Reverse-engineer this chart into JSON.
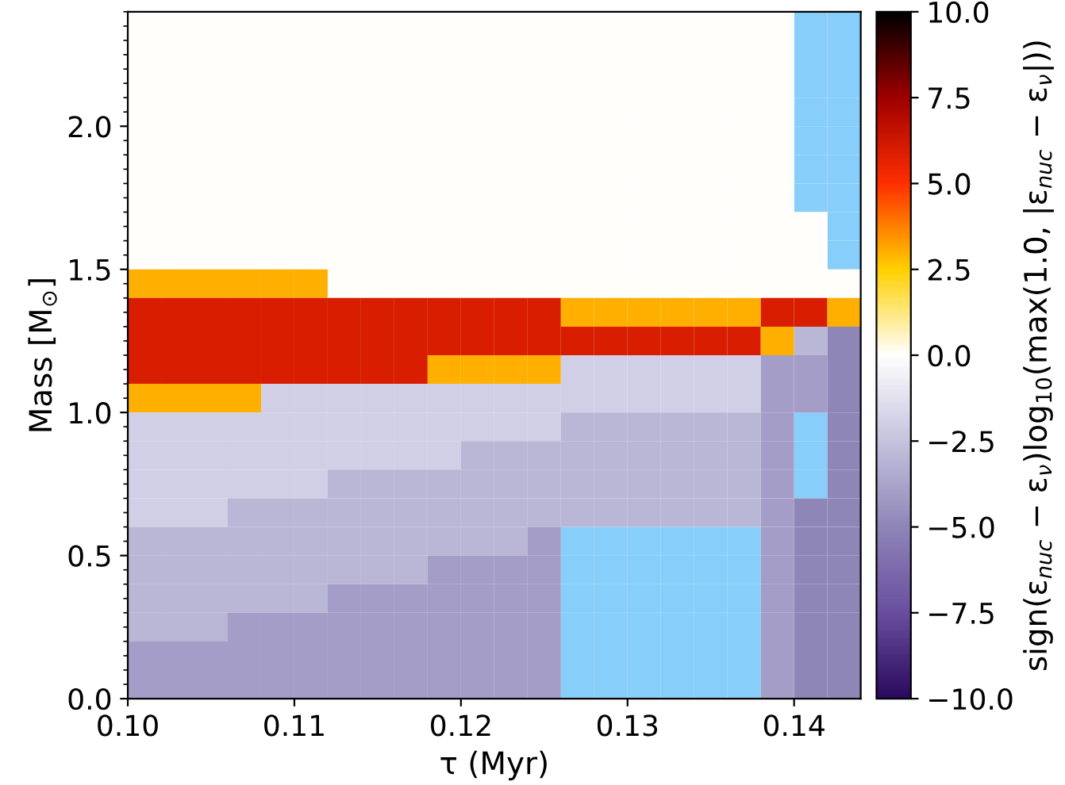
{
  "chart_data": {
    "type": "heatmap",
    "xlabel": "τ (Myr)",
    "ylabel": "Mass [M$_{⊙}$]",
    "clabel": "sign(ε$_{nuc}$ − ε$_{ν}$)log$_{10}$(max(1.0, |ε$_{nuc}$ − ε$_{ν}$|))",
    "x": [
      0.101,
      0.103,
      0.105,
      0.107,
      0.109,
      0.111,
      0.113,
      0.115,
      0.117,
      0.119,
      0.121,
      0.123,
      0.125,
      0.127,
      0.129,
      0.131,
      0.133,
      0.135,
      0.137,
      0.139,
      0.141,
      0.143
    ],
    "y": [
      2.35,
      2.25,
      2.15,
      2.05,
      1.95,
      1.85,
      1.75,
      1.65,
      1.55,
      1.45,
      1.35,
      1.25,
      1.15,
      1.05,
      0.95,
      0.85,
      0.75,
      0.65,
      0.55,
      0.45,
      0.35,
      0.25,
      0.15,
      0.05
    ],
    "xlim": [
      0.1,
      0.144
    ],
    "ylim": [
      0,
      2.4
    ],
    "xticks": [
      {
        "value": 0.1,
        "label": "0.10"
      },
      {
        "value": 0.11,
        "label": "0.11"
      },
      {
        "value": 0.12,
        "label": "0.12"
      },
      {
        "value": 0.13,
        "label": "0.13"
      },
      {
        "value": 0.14,
        "label": "0.14"
      }
    ],
    "yticks": [
      {
        "value": 0,
        "label": "0.0"
      },
      0.5,
      {
        "value": 1,
        "label": "1.0"
      },
      1.5,
      {
        "value": 2,
        "label": "2.0"
      }
    ],
    "clim": [
      -10,
      10
    ],
    "cticks": [
      {
        "value": -10,
        "label": "−10.0"
      },
      {
        "value": -7.5,
        "label": "−7.5"
      },
      {
        "value": -5,
        "label": "−5.0"
      },
      {
        "value": -2.5,
        "label": "−2.5"
      },
      {
        "value": 0,
        "label": "0.0"
      },
      2.5,
      {
        "value": 5,
        "label": "5.0"
      },
      7.5,
      {
        "value": 10,
        "label": "10.0"
      }
    ],
    "cells": [
      [
        0,
        0,
        0,
        0,
        0,
        0,
        0,
        0,
        0,
        0,
        0,
        0,
        0,
        0,
        0,
        0,
        0,
        0,
        0,
        0,
        null,
        null
      ],
      [
        0,
        0,
        0,
        0,
        0,
        0,
        0,
        0,
        0,
        0,
        0,
        0,
        0,
        0,
        0,
        0,
        0,
        0,
        0,
        0,
        null,
        null
      ],
      [
        0,
        0,
        0,
        0,
        0,
        0,
        0,
        0,
        0,
        0,
        0,
        0,
        0,
        0,
        0,
        0,
        0,
        0,
        0,
        0,
        null,
        null
      ],
      [
        0,
        0,
        0,
        0,
        0,
        0,
        0,
        0,
        0,
        0,
        0,
        0,
        0,
        0,
        0,
        0,
        0,
        0,
        0,
        0,
        null,
        null
      ],
      [
        0,
        0,
        0,
        0,
        0,
        0,
        0,
        0,
        0,
        0,
        0,
        0,
        0,
        0,
        0,
        0,
        0,
        0,
        0,
        0,
        null,
        null
      ],
      [
        0,
        0,
        0,
        0,
        0,
        0,
        0,
        0,
        0,
        0,
        0,
        0,
        0,
        0,
        0,
        0,
        0,
        0,
        0,
        0,
        null,
        null
      ],
      [
        0,
        0,
        0,
        0,
        0,
        0,
        0,
        0,
        0,
        0,
        0,
        0,
        0,
        0,
        0,
        0,
        0,
        0,
        0,
        0,
        null,
        null
      ],
      [
        0,
        0,
        0,
        0,
        0,
        0,
        0,
        0,
        0,
        0,
        0,
        0,
        0,
        0,
        0,
        0,
        0,
        0,
        0,
        0,
        0,
        null
      ],
      [
        0,
        0,
        0,
        0,
        0,
        0,
        0,
        0,
        0,
        0,
        0,
        0,
        0,
        0,
        0,
        0,
        0,
        0,
        0,
        0,
        0,
        null
      ],
      [
        3,
        3,
        3,
        3,
        3,
        3,
        0,
        0,
        0,
        0,
        0,
        0,
        0,
        0,
        0,
        0,
        0,
        0,
        0,
        0,
        0,
        0
      ],
      [
        6,
        6,
        6,
        6,
        6,
        6,
        6,
        6,
        6,
        6,
        6,
        6,
        6,
        3,
        3,
        3,
        3,
        3,
        3,
        6,
        6,
        3
      ],
      [
        6,
        6,
        6,
        6,
        6,
        6,
        6,
        6,
        6,
        6,
        6,
        6,
        6,
        6,
        6,
        6,
        6,
        6,
        6,
        3,
        -3,
        -5
      ],
      [
        6,
        6,
        6,
        6,
        6,
        6,
        6,
        6,
        6,
        3,
        3,
        3,
        3,
        -2,
        -2,
        -2,
        -2,
        -2,
        -2,
        -4,
        -4,
        -5
      ],
      [
        3,
        3,
        3,
        3,
        -2,
        -2,
        -2,
        -2,
        -2,
        -2,
        -2,
        -2,
        -2,
        -2,
        -2,
        -2,
        -2,
        -2,
        -2,
        -4,
        -4,
        -5
      ],
      [
        -2,
        -2,
        -2,
        -2,
        -2,
        -2,
        -2,
        -2,
        -2,
        -2,
        -2,
        -2,
        -2,
        -3,
        -3,
        -3,
        -3,
        -3,
        -3,
        -4,
        null,
        -5
      ],
      [
        -2,
        -2,
        -2,
        -2,
        -2,
        -2,
        -2,
        -2,
        -2,
        -2,
        -3,
        -3,
        -3,
        -3,
        -3,
        -3,
        -3,
        -3,
        -3,
        -4,
        null,
        -5
      ],
      [
        -2,
        -2,
        -2,
        -2,
        -2,
        -2,
        -3,
        -3,
        -3,
        -3,
        -3,
        -3,
        -3,
        -3,
        -3,
        -3,
        -3,
        -3,
        -3,
        -4,
        null,
        -5
      ],
      [
        -2,
        -2,
        -2,
        -3,
        -3,
        -3,
        -3,
        -3,
        -3,
        -3,
        -3,
        -3,
        -3,
        -3,
        -3,
        -3,
        -3,
        -3,
        -3,
        -4,
        -5,
        -5
      ],
      [
        -3,
        -3,
        -3,
        -3,
        -3,
        -3,
        -3,
        -3,
        -3,
        -3,
        -3,
        -3,
        -4,
        null,
        null,
        null,
        null,
        null,
        null,
        -4,
        -5,
        -5
      ],
      [
        -3,
        -3,
        -3,
        -3,
        -3,
        -3,
        -3,
        -3,
        -3,
        -4,
        -4,
        -4,
        -4,
        null,
        null,
        null,
        null,
        null,
        null,
        -4,
        -5,
        -5
      ],
      [
        -3,
        -3,
        -3,
        -3,
        -3,
        -3,
        -4,
        -4,
        -4,
        -4,
        -4,
        -4,
        -4,
        null,
        null,
        null,
        null,
        null,
        null,
        -4,
        -5,
        -5
      ],
      [
        -3,
        -3,
        -3,
        -4,
        -4,
        -4,
        -4,
        -4,
        -4,
        -4,
        -4,
        -4,
        -4,
        null,
        null,
        null,
        null,
        null,
        null,
        -4,
        -5,
        -5
      ],
      [
        -4,
        -4,
        -4,
        -4,
        -4,
        -4,
        -4,
        -4,
        -4,
        -4,
        -4,
        -4,
        -4,
        null,
        null,
        null,
        null,
        null,
        null,
        -4,
        -5,
        -5
      ],
      [
        -4,
        -4,
        -4,
        -4,
        -4,
        -4,
        -4,
        -4,
        -4,
        -4,
        -4,
        -4,
        -4,
        null,
        null,
        null,
        null,
        null,
        null,
        -4,
        -5,
        -5
      ]
    ]
  }
}
